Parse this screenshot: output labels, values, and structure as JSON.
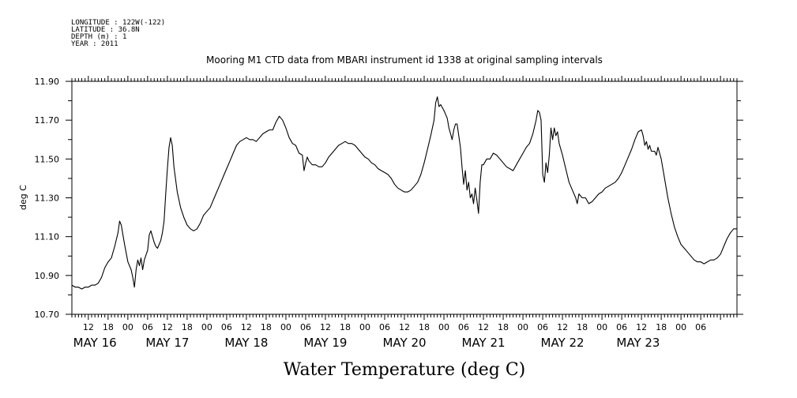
{
  "meta": {
    "lines": [
      "LONGITUDE : 122W(-122)",
      "LATITUDE : 36.8N",
      "DEPTH (m) : 1",
      "YEAR : 2011"
    ]
  },
  "chart_data": {
    "type": "line",
    "title": "Mooring M1 CTD data from MBARI instrument id 1338 at original sampling intervals",
    "xlabel": "Water Temperature (deg C)",
    "ylabel": "deg C",
    "ylim": [
      10.7,
      11.9
    ],
    "yticks": [
      "10.70",
      "10.90",
      "11.10",
      "11.30",
      "11.50",
      "11.70",
      "11.90"
    ],
    "xlim_hours": [
      -17,
      185
    ],
    "hour_ticks": [
      {
        "h": -12,
        "label": "12"
      },
      {
        "h": -6,
        "label": "18"
      },
      {
        "h": 0,
        "label": "00"
      },
      {
        "h": 6,
        "label": "06"
      },
      {
        "h": 12,
        "label": "12"
      },
      {
        "h": 18,
        "label": "18"
      },
      {
        "h": 24,
        "label": "00"
      },
      {
        "h": 30,
        "label": "06"
      },
      {
        "h": 36,
        "label": "12"
      },
      {
        "h": 42,
        "label": "18"
      },
      {
        "h": 48,
        "label": "00"
      },
      {
        "h": 54,
        "label": "06"
      },
      {
        "h": 60,
        "label": "12"
      },
      {
        "h": 66,
        "label": "18"
      },
      {
        "h": 72,
        "label": "00"
      },
      {
        "h": 78,
        "label": "06"
      },
      {
        "h": 84,
        "label": "12"
      },
      {
        "h": 90,
        "label": "18"
      },
      {
        "h": 96,
        "label": "00"
      },
      {
        "h": 102,
        "label": "06"
      },
      {
        "h": 108,
        "label": "12"
      },
      {
        "h": 114,
        "label": "18"
      },
      {
        "h": 120,
        "label": "00"
      },
      {
        "h": 126,
        "label": "06"
      },
      {
        "h": 132,
        "label": "12"
      },
      {
        "h": 138,
        "label": "18"
      },
      {
        "h": 144,
        "label": "00"
      },
      {
        "h": 150,
        "label": "06"
      },
      {
        "h": 156,
        "label": "12"
      },
      {
        "h": 162,
        "label": "18"
      },
      {
        "h": 168,
        "label": "00"
      },
      {
        "h": 174,
        "label": "06"
      }
    ],
    "day_labels": [
      {
        "h": -10,
        "label": "MAY 16"
      },
      {
        "h": 12,
        "label": "MAY 17"
      },
      {
        "h": 36,
        "label": "MAY 18"
      },
      {
        "h": 60,
        "label": "MAY 19"
      },
      {
        "h": 84,
        "label": "MAY 20"
      },
      {
        "h": 108,
        "label": "MAY 21"
      },
      {
        "h": 132,
        "label": "MAY 22"
      },
      {
        "h": 155,
        "label": "MAY 23"
      }
    ],
    "series": [
      {
        "color": "#000000",
        "points": [
          [
            -17,
            10.85
          ],
          [
            -16,
            10.84
          ],
          [
            -15,
            10.84
          ],
          [
            -14,
            10.83
          ],
          [
            -13,
            10.84
          ],
          [
            -12,
            10.84
          ],
          [
            -11,
            10.85
          ],
          [
            -10,
            10.85
          ],
          [
            -9,
            10.86
          ],
          [
            -8,
            10.89
          ],
          [
            -7,
            10.94
          ],
          [
            -6,
            10.97
          ],
          [
            -5,
            10.99
          ],
          [
            -4,
            11.05
          ],
          [
            -3,
            11.12
          ],
          [
            -2.5,
            11.18
          ],
          [
            -2,
            11.16
          ],
          [
            -1,
            11.06
          ],
          [
            0,
            10.97
          ],
          [
            1,
            10.93
          ],
          [
            1.5,
            10.89
          ],
          [
            2,
            10.84
          ],
          [
            2.5,
            10.93
          ],
          [
            3,
            10.98
          ],
          [
            3.5,
            10.95
          ],
          [
            4,
            10.99
          ],
          [
            4.5,
            10.93
          ],
          [
            5,
            10.98
          ],
          [
            6,
            11.03
          ],
          [
            6.5,
            11.11
          ],
          [
            7,
            11.13
          ],
          [
            7.5,
            11.1
          ],
          [
            8,
            11.07
          ],
          [
            8.5,
            11.05
          ],
          [
            9,
            11.04
          ],
          [
            9.5,
            11.06
          ],
          [
            10,
            11.08
          ],
          [
            10.5,
            11.12
          ],
          [
            11,
            11.18
          ],
          [
            11.5,
            11.32
          ],
          [
            12,
            11.45
          ],
          [
            12.5,
            11.56
          ],
          [
            13,
            11.61
          ],
          [
            13.5,
            11.57
          ],
          [
            14,
            11.46
          ],
          [
            15,
            11.33
          ],
          [
            16,
            11.25
          ],
          [
            17,
            11.2
          ],
          [
            18,
            11.16
          ],
          [
            19,
            11.14
          ],
          [
            20,
            11.13
          ],
          [
            21,
            11.14
          ],
          [
            22,
            11.17
          ],
          [
            23,
            11.21
          ],
          [
            24,
            11.23
          ],
          [
            25,
            11.25
          ],
          [
            26,
            11.29
          ],
          [
            27,
            11.33
          ],
          [
            28,
            11.37
          ],
          [
            29,
            11.41
          ],
          [
            30,
            11.45
          ],
          [
            31,
            11.49
          ],
          [
            32,
            11.53
          ],
          [
            33,
            11.57
          ],
          [
            34,
            11.59
          ],
          [
            35,
            11.6
          ],
          [
            36,
            11.61
          ],
          [
            37,
            11.6
          ],
          [
            38,
            11.6
          ],
          [
            39,
            11.59
          ],
          [
            40,
            11.61
          ],
          [
            41,
            11.63
          ],
          [
            42,
            11.64
          ],
          [
            43,
            11.65
          ],
          [
            44,
            11.65
          ],
          [
            45,
            11.69
          ],
          [
            46,
            11.72
          ],
          [
            46.5,
            11.71
          ],
          [
            47,
            11.7
          ],
          [
            48,
            11.66
          ],
          [
            49,
            11.61
          ],
          [
            50,
            11.58
          ],
          [
            51,
            11.57
          ],
          [
            52,
            11.53
          ],
          [
            53,
            11.52
          ],
          [
            53.5,
            11.44
          ],
          [
            54,
            11.48
          ],
          [
            54.5,
            11.51
          ],
          [
            55,
            11.49
          ],
          [
            56,
            11.47
          ],
          [
            57,
            11.47
          ],
          [
            58,
            11.46
          ],
          [
            59,
            11.46
          ],
          [
            60,
            11.48
          ],
          [
            61,
            11.51
          ],
          [
            62,
            11.53
          ],
          [
            63,
            11.55
          ],
          [
            64,
            11.57
          ],
          [
            65,
            11.58
          ],
          [
            66,
            11.59
          ],
          [
            67,
            11.58
          ],
          [
            68,
            11.58
          ],
          [
            69,
            11.57
          ],
          [
            70,
            11.55
          ],
          [
            71,
            11.53
          ],
          [
            72,
            11.51
          ],
          [
            73,
            11.5
          ],
          [
            74,
            11.48
          ],
          [
            75,
            11.47
          ],
          [
            76,
            11.45
          ],
          [
            77,
            11.44
          ],
          [
            78,
            11.43
          ],
          [
            79,
            11.42
          ],
          [
            80,
            11.4
          ],
          [
            81,
            11.37
          ],
          [
            82,
            11.35
          ],
          [
            83,
            11.34
          ],
          [
            84,
            11.33
          ],
          [
            85,
            11.33
          ],
          [
            86,
            11.34
          ],
          [
            87,
            11.36
          ],
          [
            88,
            11.38
          ],
          [
            89,
            11.42
          ],
          [
            90,
            11.48
          ],
          [
            91,
            11.55
          ],
          [
            92,
            11.62
          ],
          [
            93,
            11.7
          ],
          [
            93.5,
            11.79
          ],
          [
            94,
            11.82
          ],
          [
            94.5,
            11.77
          ],
          [
            95,
            11.78
          ],
          [
            96,
            11.75
          ],
          [
            97,
            11.71
          ],
          [
            97.5,
            11.66
          ],
          [
            98,
            11.63
          ],
          [
            98.5,
            11.6
          ],
          [
            99,
            11.65
          ],
          [
            99.5,
            11.68
          ],
          [
            100,
            11.68
          ],
          [
            100.5,
            11.62
          ],
          [
            101,
            11.56
          ],
          [
            101.5,
            11.46
          ],
          [
            102,
            11.37
          ],
          [
            102.5,
            11.44
          ],
          [
            103,
            11.34
          ],
          [
            103.5,
            11.38
          ],
          [
            104,
            11.3
          ],
          [
            104.5,
            11.32
          ],
          [
            105,
            11.27
          ],
          [
            105.5,
            11.35
          ],
          [
            106,
            11.29
          ],
          [
            106.5,
            11.22
          ],
          [
            107,
            11.38
          ],
          [
            107.5,
            11.47
          ],
          [
            108,
            11.47
          ],
          [
            109,
            11.5
          ],
          [
            110,
            11.5
          ],
          [
            111,
            11.53
          ],
          [
            112,
            11.52
          ],
          [
            113,
            11.5
          ],
          [
            114,
            11.48
          ],
          [
            115,
            11.46
          ],
          [
            116,
            11.45
          ],
          [
            117,
            11.44
          ],
          [
            118,
            11.47
          ],
          [
            119,
            11.5
          ],
          [
            120,
            11.53
          ],
          [
            121,
            11.56
          ],
          [
            122,
            11.58
          ],
          [
            123,
            11.63
          ],
          [
            124,
            11.7
          ],
          [
            124.5,
            11.75
          ],
          [
            125,
            11.74
          ],
          [
            125.5,
            11.7
          ],
          [
            126,
            11.42
          ],
          [
            126.5,
            11.38
          ],
          [
            127,
            11.48
          ],
          [
            127.5,
            11.43
          ],
          [
            128,
            11.52
          ],
          [
            128.5,
            11.66
          ],
          [
            129,
            11.6
          ],
          [
            129.5,
            11.66
          ],
          [
            130,
            11.62
          ],
          [
            130.5,
            11.64
          ],
          [
            131,
            11.58
          ],
          [
            132,
            11.52
          ],
          [
            133,
            11.45
          ],
          [
            134,
            11.38
          ],
          [
            135,
            11.34
          ],
          [
            136,
            11.3
          ],
          [
            136.5,
            11.27
          ],
          [
            137,
            11.32
          ],
          [
            138,
            11.3
          ],
          [
            139,
            11.3
          ],
          [
            140,
            11.27
          ],
          [
            141,
            11.28
          ],
          [
            142,
            11.3
          ],
          [
            143,
            11.32
          ],
          [
            144,
            11.33
          ],
          [
            145,
            11.35
          ],
          [
            146,
            11.36
          ],
          [
            147,
            11.37
          ],
          [
            148,
            11.38
          ],
          [
            149,
            11.4
          ],
          [
            150,
            11.43
          ],
          [
            151,
            11.47
          ],
          [
            152,
            11.51
          ],
          [
            153,
            11.55
          ],
          [
            154,
            11.6
          ],
          [
            155,
            11.64
          ],
          [
            156,
            11.65
          ],
          [
            156.5,
            11.62
          ],
          [
            157,
            11.57
          ],
          [
            157.5,
            11.59
          ],
          [
            158,
            11.55
          ],
          [
            158.5,
            11.57
          ],
          [
            159,
            11.54
          ],
          [
            160,
            11.54
          ],
          [
            160.5,
            11.52
          ],
          [
            161,
            11.56
          ],
          [
            162,
            11.5
          ],
          [
            163,
            11.4
          ],
          [
            164,
            11.3
          ],
          [
            165,
            11.22
          ],
          [
            166,
            11.15
          ],
          [
            167,
            11.1
          ],
          [
            168,
            11.06
          ],
          [
            169,
            11.04
          ],
          [
            170,
            11.02
          ],
          [
            171,
            11.0
          ],
          [
            172,
            10.98
          ],
          [
            173,
            10.97
          ],
          [
            174,
            10.97
          ],
          [
            175,
            10.96
          ],
          [
            176,
            10.97
          ],
          [
            177,
            10.98
          ],
          [
            178,
            10.98
          ],
          [
            179,
            10.99
          ],
          [
            180,
            11.01
          ],
          [
            181,
            11.05
          ],
          [
            182,
            11.09
          ],
          [
            183,
            11.12
          ],
          [
            184,
            11.14
          ],
          [
            185,
            11.14
          ]
        ]
      }
    ]
  }
}
